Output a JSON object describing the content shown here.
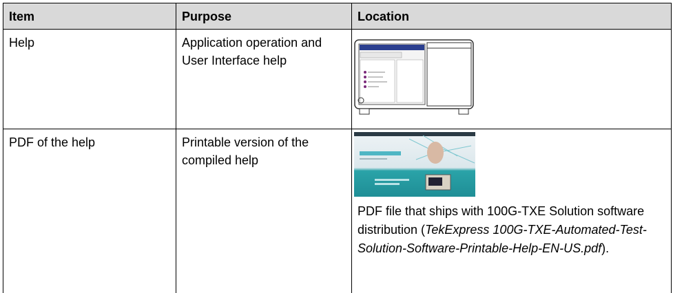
{
  "table": {
    "header": [
      "Item",
      "Purpose",
      "Location"
    ],
    "rows": [
      [
        "Help",
        "Application operation and User Interface help"
      ],
      [
        "PDF of the help",
        "Printable version of the compiled help"
      ]
    ],
    "location_note": {
      "before": "PDF file that ships with 100G-TXE Solution software distribution (",
      "italic": "TekExpress 100G-TXE-Automated-Test-Solution-Software-Printable-Help-EN-US.pdf",
      "after": ")."
    }
  }
}
